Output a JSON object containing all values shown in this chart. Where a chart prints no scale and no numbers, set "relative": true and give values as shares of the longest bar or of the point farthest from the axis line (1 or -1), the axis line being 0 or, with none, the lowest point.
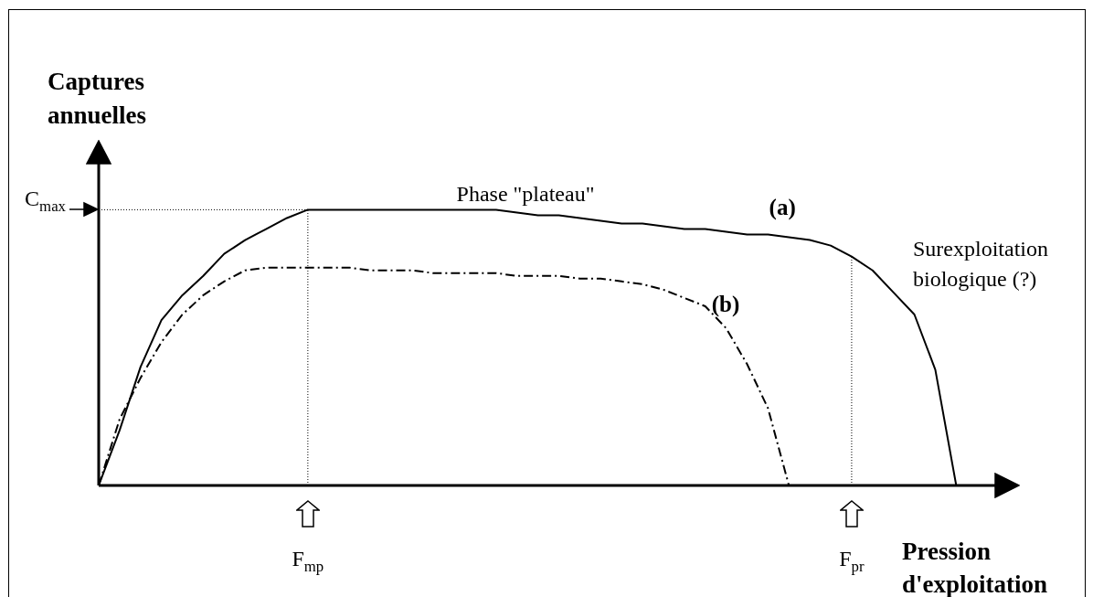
{
  "chart_data": {
    "type": "line",
    "relative": true,
    "legend": false,
    "xlabel": "Pression d'exploitation",
    "ylabel": "Captures annuelles",
    "categories": [
      null,
      null,
      null,
      null,
      null,
      null,
      null,
      null,
      null,
      null,
      "F$_{mp}$",
      null,
      null,
      null,
      null,
      null,
      null,
      null,
      null,
      null,
      null,
      null,
      null,
      null,
      null,
      null,
      null,
      null,
      null,
      null,
      null,
      null,
      null,
      null,
      null,
      null,
      "F$_{pr}$",
      null,
      null,
      null,
      null,
      null,
      null,
      null,
      null
    ],
    "series": [
      {
        "name": "(a)",
        "color": "#000000",
        "line_style": "solid",
        "values": [
          0,
          0.2,
          0.43,
          0.6,
          0.69,
          0.76,
          0.84,
          0.89,
          0.93,
          0.97,
          1,
          1,
          1,
          1,
          1,
          1,
          1,
          1,
          1,
          1,
          0.99,
          0.98,
          0.98,
          0.97,
          0.96,
          0.95,
          0.95,
          0.94,
          0.93,
          0.93,
          0.92,
          0.91,
          0.91,
          0.9,
          0.89,
          0.87,
          0.83,
          0.78,
          0.7,
          0.62,
          0.42,
          0,
          null,
          null,
          null
        ]
      },
      {
        "name": "(b)",
        "color": "#000000",
        "line_style": "dashed",
        "values": [
          0,
          0.24,
          0.39,
          0.52,
          0.62,
          0.69,
          0.74,
          0.78,
          0.79,
          0.79,
          0.79,
          0.79,
          0.79,
          0.78,
          0.78,
          0.78,
          0.77,
          0.77,
          0.77,
          0.77,
          0.76,
          0.76,
          0.76,
          0.75,
          0.75,
          0.74,
          0.73,
          0.71,
          0.68,
          0.65,
          0.57,
          0.44,
          0.28,
          0,
          null,
          null,
          null,
          null,
          null,
          null,
          null,
          null,
          null,
          null,
          null
        ]
      }
    ],
    "ref_lines": [
      {
        "axis": "y",
        "value": 1,
        "label": "C$_{max}$",
        "line_style": "dotted"
      },
      {
        "axis": "x",
        "value": "F$_{mp}$",
        "line_style": "dotted"
      },
      {
        "axis": "x",
        "value": "F$_{pr}$",
        "line_style": "dotted"
      }
    ],
    "annotations": [
      "Phase \"plateau\"",
      "Surexploitation biologique (?)"
    ]
  }
}
